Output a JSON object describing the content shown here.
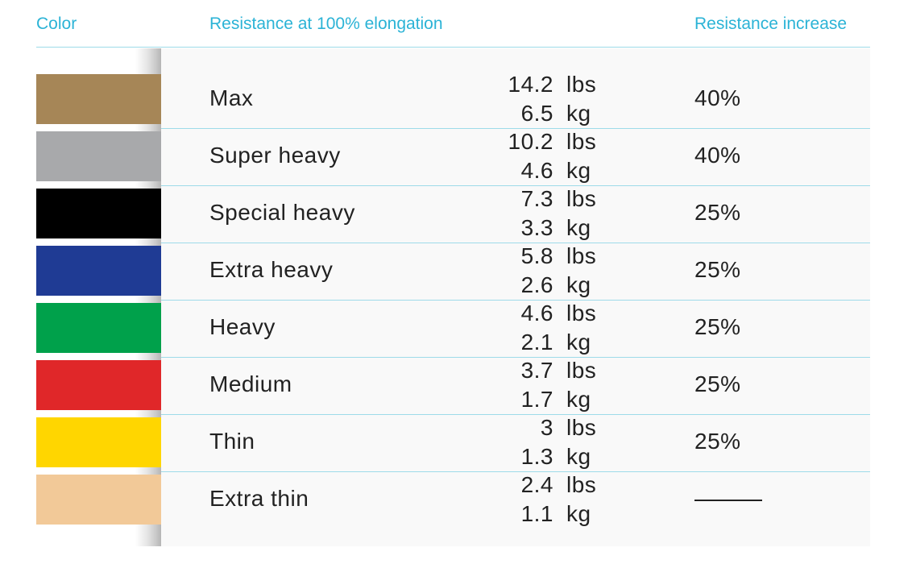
{
  "header": {
    "color": "Color",
    "resistance": "Resistance at 100% elongation",
    "increase": "Resistance increase"
  },
  "rows": [
    {
      "name": "Max",
      "lbs": "14.2",
      "lbs_unit": "lbs",
      "kg": "6.5",
      "kg_unit": "kg",
      "increase": "40%",
      "color": "#a68657"
    },
    {
      "name": "Super heavy",
      "lbs": "10.2",
      "lbs_unit": "lbs",
      "kg": "4.6",
      "kg_unit": "kg",
      "increase": "40%",
      "color": "#a8a9ab"
    },
    {
      "name": "Special heavy",
      "lbs": "7.3",
      "lbs_unit": "lbs",
      "kg": "3.3",
      "kg_unit": "kg",
      "increase": "25%",
      "color": "#000000"
    },
    {
      "name": "Extra heavy",
      "lbs": "5.8",
      "lbs_unit": "lbs",
      "kg": "2.6",
      "kg_unit": "kg",
      "increase": "25%",
      "color": "#1f3b94"
    },
    {
      "name": "Heavy",
      "lbs": "4.6",
      "lbs_unit": "lbs",
      "kg": "2.1",
      "kg_unit": "kg",
      "increase": "25%",
      "color": "#00a14b"
    },
    {
      "name": "Medium",
      "lbs": "3.7",
      "lbs_unit": "lbs",
      "kg": "1.7",
      "kg_unit": "kg",
      "increase": "25%",
      "color": "#e02729"
    },
    {
      "name": "Thin",
      "lbs": "3",
      "lbs_unit": "lbs",
      "kg": "1.3",
      "kg_unit": "kg",
      "increase": "25%",
      "color": "#ffd600"
    },
    {
      "name": "Extra thin",
      "lbs": "2.4",
      "lbs_unit": "lbs",
      "kg": "1.1",
      "kg_unit": "kg",
      "increase": "",
      "color": "#f2c998"
    }
  ]
}
